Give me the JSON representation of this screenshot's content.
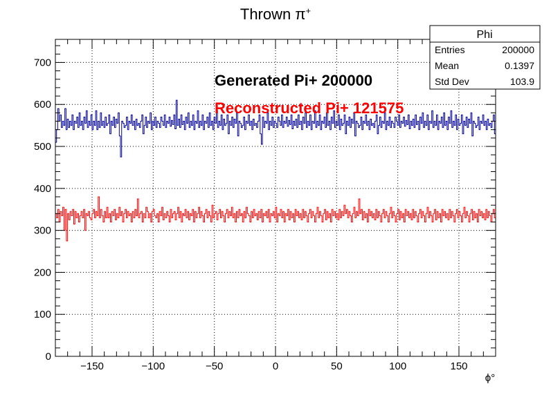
{
  "chart_data": {
    "type": "histogram",
    "title_main": "Thrown π",
    "title_sup": "+",
    "xlabel": "ϕ°",
    "ylabel": "",
    "xlim": [
      -180,
      180
    ],
    "ylim": [
      0,
      755
    ],
    "grid": true,
    "nbins": 360,
    "x_ticks": [
      -150,
      -100,
      -50,
      0,
      50,
      100,
      150
    ],
    "x_tick_labels": [
      "−150",
      "−100",
      "−50",
      "0",
      "50",
      "100",
      "150"
    ],
    "y_ticks": [
      0,
      100,
      200,
      300,
      400,
      500,
      600,
      700
    ],
    "y_tick_labels": [
      "0",
      "100",
      "200",
      "300",
      "400",
      "500",
      "600",
      "700"
    ],
    "annotations": [
      {
        "text": "Generated Pi+ 200000",
        "color": "#000000"
      },
      {
        "text": "Reconstructed Pi+ 121575",
        "color": "#ff0000"
      }
    ],
    "stats_box": {
      "title": "Phi",
      "rows": [
        {
          "label": "Entries",
          "value": "200000"
        },
        {
          "label": "Mean",
          "value": "0.1397"
        },
        {
          "label": "Std Dev",
          "value": "103.9"
        }
      ]
    },
    "series": [
      {
        "color": "#000099",
        "mean": 556,
        "spread": 22,
        "values": [
          510,
          540,
          590,
          560,
          575,
          545,
          560,
          550,
          590,
          540,
          565,
          545,
          560,
          550,
          575,
          540,
          560,
          555,
          570,
          545,
          580,
          550,
          560,
          540,
          570,
          555,
          585,
          545,
          560,
          550,
          575,
          540,
          560,
          550,
          585,
          540,
          560,
          545,
          580,
          550,
          560,
          545,
          570,
          550,
          555,
          575,
          530,
          560,
          550,
          570,
          545,
          565,
          555,
          580,
          525,
          475,
          560,
          555,
          545,
          550,
          570,
          540,
          560,
          555,
          575,
          550,
          560,
          540,
          565,
          550,
          555,
          545,
          560,
          575,
          530,
          550,
          570,
          545,
          560,
          555,
          580,
          540,
          560,
          550,
          570,
          545,
          560,
          555,
          545,
          570,
          560,
          550,
          575,
          545,
          560,
          555,
          570,
          548,
          562,
          552,
          575,
          542,
          610,
          550,
          565,
          545,
          575,
          552,
          560,
          540,
          570,
          555,
          580,
          545,
          560,
          550,
          575,
          540,
          560,
          555,
          585,
          545,
          560,
          550,
          575,
          540,
          560,
          555,
          570,
          545,
          580,
          550,
          560,
          540,
          570,
          555,
          585,
          545,
          560,
          550,
          575,
          540,
          565,
          550,
          555,
          575,
          530,
          560,
          550,
          570,
          545,
          565,
          555,
          580,
          525,
          560,
          555,
          545,
          550,
          570,
          540,
          560,
          555,
          575,
          550,
          560,
          540,
          565,
          550,
          555,
          545,
          560,
          575,
          530,
          505,
          570,
          545,
          560,
          555,
          580,
          540,
          560,
          550,
          570,
          545,
          560,
          555,
          545,
          570,
          560,
          550,
          575,
          545,
          560,
          555,
          570,
          548,
          562,
          552,
          575,
          542,
          560,
          550,
          565,
          545,
          575,
          552,
          560,
          540,
          570,
          555,
          580,
          545,
          560,
          550,
          575,
          540,
          560,
          555,
          585,
          545,
          560,
          550,
          575,
          540,
          560,
          555,
          570,
          545,
          580,
          550,
          560,
          540,
          570,
          555,
          585,
          545,
          560,
          550,
          575,
          540,
          565,
          550,
          555,
          575,
          530,
          560,
          550,
          570,
          545,
          565,
          555,
          580,
          525,
          560,
          555,
          545,
          550,
          570,
          540,
          560,
          555,
          575,
          550,
          560,
          540,
          565,
          550,
          555,
          545,
          560,
          575,
          530,
          550,
          570,
          545,
          560,
          555,
          580,
          540,
          560,
          550,
          570,
          545,
          560,
          555,
          545,
          570,
          560,
          550,
          575,
          545,
          560,
          555,
          570,
          548,
          562,
          552,
          575,
          542,
          560,
          550,
          565,
          545,
          575,
          552,
          560,
          540,
          570,
          555,
          580,
          545,
          560,
          550,
          575,
          540,
          560,
          555,
          585,
          545,
          560,
          550,
          575,
          540,
          560,
          555,
          570,
          545,
          580,
          550,
          560,
          540,
          570,
          555,
          585,
          545,
          560,
          550,
          575,
          540,
          565,
          550,
          555,
          575,
          530,
          560,
          550,
          570,
          545,
          565,
          555,
          580,
          525,
          560,
          555,
          545,
          550,
          570,
          540,
          560,
          555,
          575,
          550,
          560,
          540,
          565,
          550,
          555,
          545,
          560,
          575,
          530
        ]
      },
      {
        "color": "#ff0000",
        "mean": 336,
        "spread": 16,
        "values": [
          340,
          330,
          350,
          320,
          345,
          335,
          355,
          300,
          350,
          275,
          340,
          325,
          345,
          335,
          350,
          315,
          345,
          330,
          340,
          320,
          335,
          345,
          330,
          350,
          300,
          340,
          335,
          345,
          330,
          325,
          340,
          350,
          330,
          345,
          335,
          380,
          330,
          350,
          335,
          320,
          345,
          330,
          355,
          330,
          340,
          320,
          345,
          335,
          350,
          325,
          340,
          330,
          355,
          335,
          345,
          320,
          340,
          350,
          330,
          345,
          335,
          340,
          320,
          345,
          330,
          350,
          335,
          375,
          330,
          340,
          345,
          320,
          340,
          330,
          355,
          345,
          330,
          340,
          320,
          345,
          350,
          335,
          330,
          340,
          320,
          345,
          335,
          355,
          325,
          340,
          330,
          345,
          335,
          320,
          350,
          330,
          340,
          345,
          325,
          340,
          355,
          330,
          345,
          320,
          340,
          335,
          350,
          330,
          345,
          325,
          340,
          335,
          350,
          320,
          345,
          330,
          340,
          355,
          330,
          345,
          335,
          320,
          340,
          350,
          330,
          345,
          335,
          320,
          360,
          330,
          340,
          345,
          325,
          340,
          350,
          330,
          345,
          335,
          320,
          340,
          350,
          330,
          345,
          335,
          355,
          330,
          340,
          320,
          345,
          330,
          350,
          335,
          340,
          320,
          345,
          330,
          355,
          340,
          335,
          320,
          345,
          330,
          350,
          335,
          340,
          325,
          345,
          330,
          350,
          320,
          340,
          335,
          345,
          330,
          350,
          320,
          340,
          335,
          345,
          330,
          355,
          320,
          340,
          335,
          350,
          330,
          345,
          320,
          340,
          335,
          350,
          325,
          345,
          330,
          340,
          320,
          350,
          335,
          345,
          330,
          340,
          325,
          350,
          330,
          345,
          335,
          320,
          340,
          350,
          330,
          345,
          335,
          320,
          340,
          355,
          330,
          345,
          335,
          320,
          340,
          350,
          325,
          345,
          330,
          340,
          320,
          350,
          335,
          345,
          330,
          340,
          325,
          350,
          330,
          345,
          335,
          360,
          340,
          350,
          330,
          345,
          335,
          320,
          340,
          355,
          330,
          345,
          335,
          375,
          340,
          350,
          325,
          345,
          330,
          340,
          320,
          350,
          335,
          345,
          330,
          340,
          325,
          350,
          330,
          345,
          335,
          320,
          340,
          350,
          330,
          345,
          335,
          320,
          340,
          355,
          330,
          345,
          335,
          320,
          340,
          350,
          325,
          345,
          330,
          340,
          320,
          350,
          335,
          345,
          330,
          340,
          325,
          350,
          330,
          345,
          335,
          320,
          340,
          350,
          330,
          345,
          335,
          320,
          340,
          355,
          330,
          345,
          335,
          320,
          340,
          350,
          325,
          345,
          330,
          340,
          320,
          350,
          335,
          345,
          330,
          340,
          325,
          350,
          330,
          345,
          335,
          320,
          340,
          350,
          330,
          345,
          335,
          320,
          340,
          355,
          330,
          345,
          335,
          320,
          340,
          350,
          325,
          345,
          330,
          340,
          320,
          350,
          335,
          345,
          330,
          340,
          325,
          350,
          330,
          345,
          335,
          320,
          340,
          350,
          330
        ]
      }
    ]
  }
}
